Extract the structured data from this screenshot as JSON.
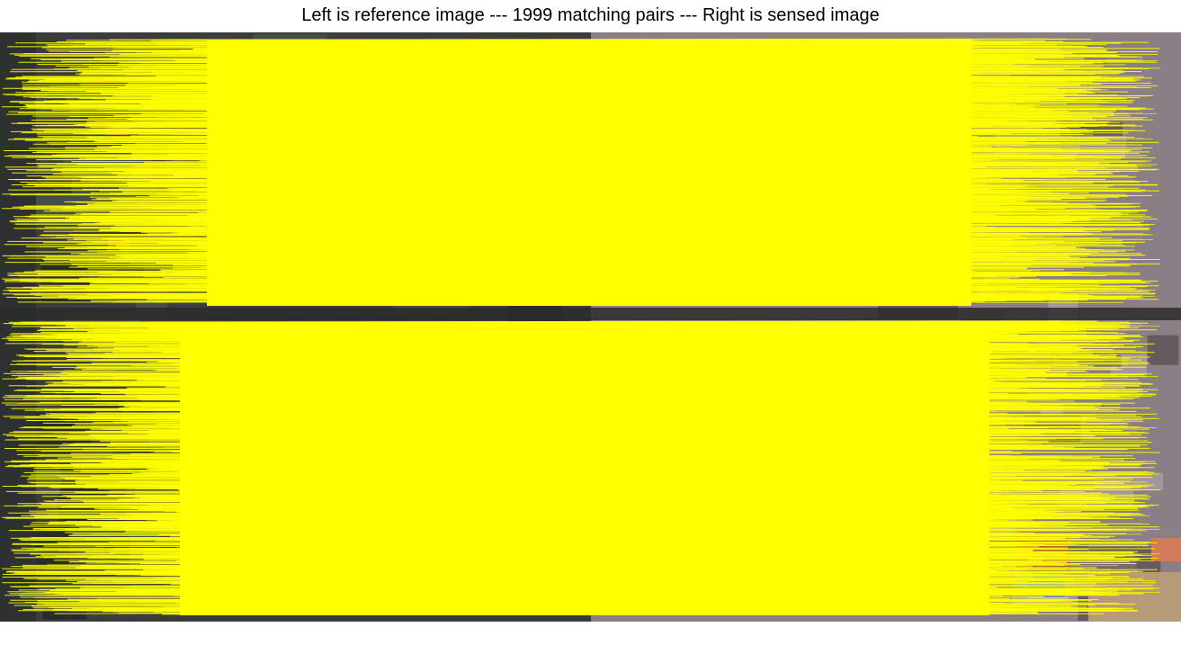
{
  "figure": {
    "title": "Left is reference image --- 1999 matching pairs --- Right is sensed image"
  },
  "panels": {
    "reference": {
      "role": "reference image"
    },
    "sensed": {
      "role": "sensed image"
    }
  },
  "matches": {
    "count": 1999,
    "line_color": "#ffff00",
    "road_color": "#2a2a2a"
  },
  "colors": {
    "background": "#ffffff",
    "reference_base": "#3a3d3a",
    "sensed_base": "#8a7f84",
    "roof_red": "#b8583e",
    "roof_blue": "#6f7fe0",
    "field_tan": "#b79a78"
  }
}
